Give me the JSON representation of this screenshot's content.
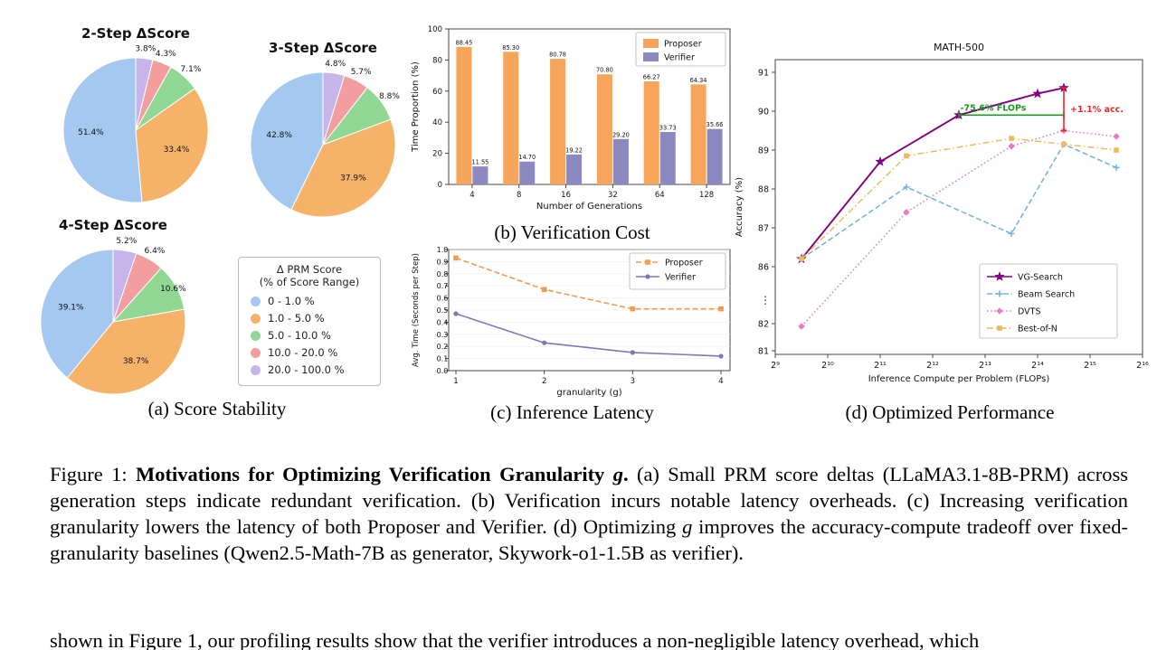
{
  "panel_a": {
    "caption": "(a) Score Stability",
    "legend": {
      "title_line1": "Δ PRM Score",
      "title_line2": "(% of Score Range)",
      "entries": [
        "0 - 1.0 %",
        "1.0 - 5.0 %",
        "5.0 - 10.0 %",
        "10.0 - 20.0 %",
        "20.0 - 100.0 %"
      ],
      "colors": [
        "#A4C8F0",
        "#F7B269",
        "#90D793",
        "#F29E9E",
        "#C7B4EA"
      ]
    }
  },
  "panel_b": {
    "caption": "(b) Verification Cost"
  },
  "panel_c": {
    "caption": "(c) Inference Latency"
  },
  "panel_d": {
    "caption": "(d) Optimized Performance"
  },
  "figure_caption": {
    "segments": [
      {
        "t": "Figure 1: ",
        "b": false,
        "i": false
      },
      {
        "t": "Motivations for Optimizing Verification Granularity ",
        "b": true,
        "i": false
      },
      {
        "t": "g",
        "b": true,
        "i": true
      },
      {
        "t": ". ",
        "b": true,
        "i": false
      },
      {
        "t": "(a) Small PRM score deltas (LLaMA3.1-8B-PRM) across generation steps indicate redundant verification. (b) Verification incurs notable latency overheads. (c) Increasing verification granularity lowers the latency of both Proposer and Verifier. (d) Optimizing ",
        "b": false,
        "i": false
      },
      {
        "t": "g",
        "b": false,
        "i": true
      },
      {
        "t": " improves the accuracy-compute tradeoff over fixed-granularity baselines (Qwen2.5-Math-7B as generator, Skywork-o1-1.5B as verifier).",
        "b": false,
        "i": false
      }
    ]
  },
  "body_text": "shown in Figure 1, our profiling results show that the verifier introduces a non-negligible latency overhead, which",
  "chart_data": [
    {
      "id": "pie-2step",
      "type": "pie",
      "title": "2-Step ΔScore",
      "labels": [
        "0 - 1.0 %",
        "1.0 - 5.0 %",
        "5.0 - 10.0 %",
        "10.0 - 20.0 %",
        "20.0 - 100.0 %"
      ],
      "values": [
        51.4,
        33.4,
        7.1,
        4.3,
        3.8
      ],
      "colors": [
        "#A4C8F0",
        "#F7B269",
        "#90D793",
        "#F29E9E",
        "#C7B4EA"
      ]
    },
    {
      "id": "pie-3step",
      "type": "pie",
      "title": "3-Step ΔScore",
      "labels": [
        "0 - 1.0 %",
        "1.0 - 5.0 %",
        "5.0 - 10.0 %",
        "10.0 - 20.0 %",
        "20.0 - 100.0 %"
      ],
      "values": [
        42.8,
        37.9,
        8.8,
        5.7,
        4.8
      ],
      "colors": [
        "#A4C8F0",
        "#F7B269",
        "#90D793",
        "#F29E9E",
        "#C7B4EA"
      ]
    },
    {
      "id": "pie-4step",
      "type": "pie",
      "title": "4-Step ΔScore",
      "labels": [
        "0 - 1.0 %",
        "1.0 - 5.0 %",
        "5.0 - 10.0 %",
        "10.0 - 20.0 %",
        "20.0 - 100.0 %"
      ],
      "values": [
        39.1,
        38.7,
        10.6,
        6.4,
        5.2
      ],
      "colors": [
        "#A4C8F0",
        "#F7B269",
        "#90D793",
        "#F29E9E",
        "#C7B4EA"
      ]
    },
    {
      "id": "verification-cost",
      "type": "bar",
      "categories": [
        "4",
        "8",
        "16",
        "32",
        "64",
        "128"
      ],
      "series": [
        {
          "name": "Proposer",
          "color": "#F8A55C",
          "values": [
            88.45,
            85.3,
            80.78,
            70.8,
            66.27,
            64.34
          ]
        },
        {
          "name": "Verifier",
          "color": "#8C89C0",
          "values": [
            11.55,
            14.7,
            19.22,
            29.2,
            33.73,
            35.66
          ]
        }
      ],
      "xlabel": "Number of Generations",
      "ylabel": "Time Proportion (%)",
      "ylim": [
        0,
        100
      ],
      "yticks": [
        0,
        20,
        40,
        60,
        80,
        100
      ],
      "legend_position": "upper right"
    },
    {
      "id": "inference-latency",
      "type": "line",
      "x": [
        1,
        2,
        3,
        4
      ],
      "series": [
        {
          "name": "Proposer",
          "color": "#F49A52",
          "dash": "dashed",
          "marker": "square",
          "values": [
            0.93,
            0.67,
            0.51,
            0.51
          ]
        },
        {
          "name": "Verifier",
          "color": "#7C78B8",
          "dash": "solid",
          "marker": "circle",
          "values": [
            0.47,
            0.23,
            0.15,
            0.12
          ]
        }
      ],
      "xlabel": "granularity (g)",
      "ylabel": "Avg. Time (Seconds per Step)",
      "ylim": [
        0,
        1
      ],
      "yticks": [
        0.0,
        0.1,
        0.2,
        0.3,
        0.4,
        0.5,
        0.6,
        0.7,
        0.8,
        0.9,
        1.0
      ],
      "legend_position": "upper right"
    },
    {
      "id": "optimized-performance",
      "type": "line",
      "title": "MATH-500",
      "xlabel": "Inference Compute per Problem (FLOPs)",
      "ylabel": "Accuracy (%)",
      "x_scale": "log2",
      "axis_break": true,
      "xticks_log2": [
        9,
        10,
        11,
        12,
        13,
        14,
        15,
        16
      ],
      "xtick_labels": [
        "2⁹",
        "2¹⁰",
        "2¹¹",
        "2¹²",
        "2¹³",
        "2¹⁴",
        "2¹⁵",
        "2¹⁶"
      ],
      "yticks_main": [
        86,
        87,
        88,
        89,
        90,
        91
      ],
      "yticks_low": [
        81,
        82
      ],
      "series": [
        {
          "name": "VG-Search",
          "color": "#800080",
          "dash": "solid",
          "marker": "star",
          "x_log2": [
            9.5,
            11,
            12.5,
            14,
            14.5
          ],
          "values": [
            86.2,
            88.7,
            89.9,
            90.45,
            90.6
          ]
        },
        {
          "name": "Beam Search",
          "color": "#6FB3D9",
          "dash": "dashed",
          "marker": "plus",
          "x_log2": [
            9.5,
            11.5,
            13.5,
            14.5,
            15.5
          ],
          "values": [
            86.2,
            88.05,
            86.85,
            89.15,
            88.55
          ]
        },
        {
          "name": "DVTS",
          "color": "#E87BC4",
          "dash": "dotted",
          "marker": "diamond",
          "x_log2": [
            9.5,
            11.5,
            13.5,
            14.5,
            15.5
          ],
          "values": [
            81.9,
            87.4,
            89.1,
            89.5,
            89.35
          ]
        },
        {
          "name": "Best-of-N",
          "color": "#EDBA5E",
          "dash": "dashdot",
          "marker": "square",
          "x_log2": [
            9.5,
            11.5,
            13.5,
            14.5,
            15.5
          ],
          "values": [
            86.2,
            88.85,
            89.3,
            89.15,
            89.0
          ]
        }
      ],
      "annotations": [
        {
          "text": "-75.6% FLOPs",
          "color": "#1E9B1E",
          "y": 89.9,
          "x_from_log2": 12.5,
          "x_to_log2": 14.5
        },
        {
          "text": "+1.1% acc.",
          "color": "#E82A2A",
          "x_log2": 14.5,
          "y_from": 89.5,
          "y_to": 90.6
        }
      ],
      "legend_position": "center right"
    }
  ]
}
